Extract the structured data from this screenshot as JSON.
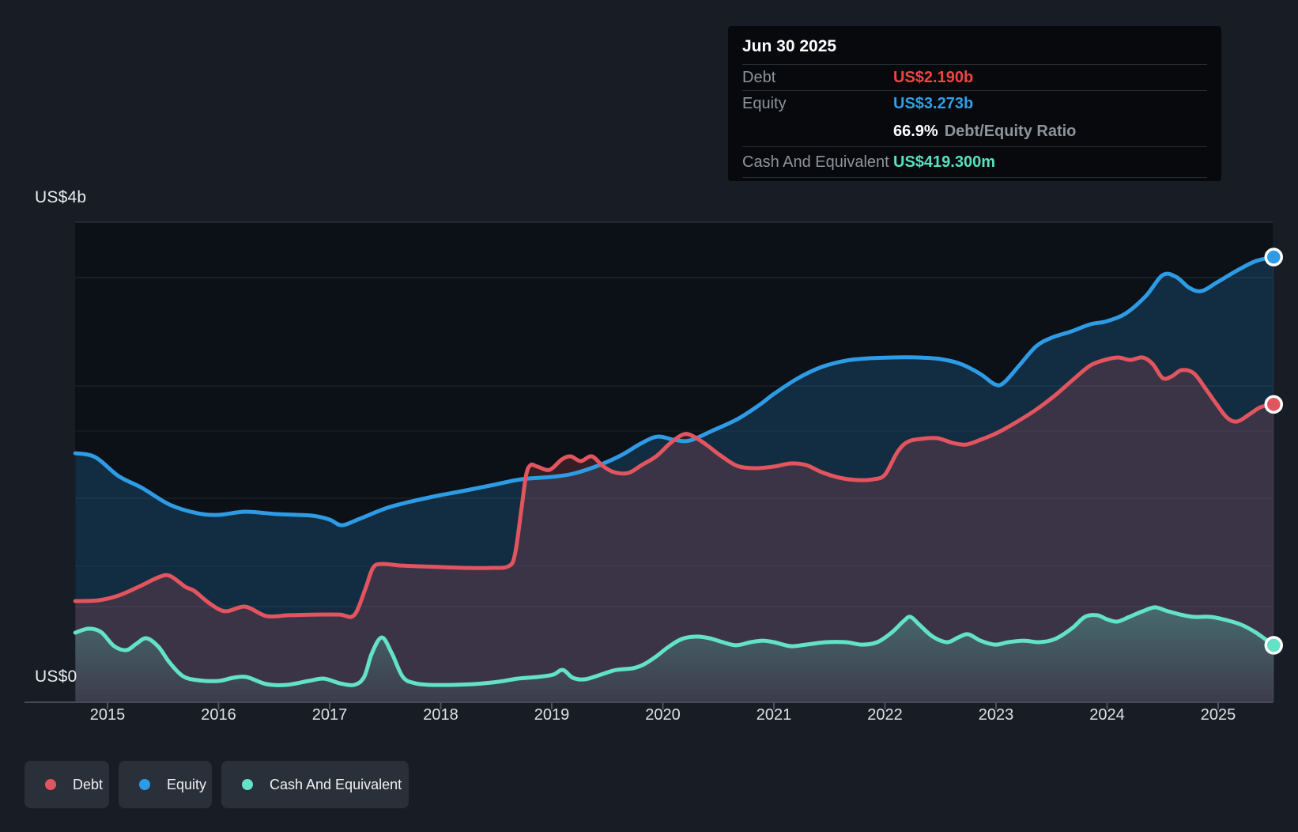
{
  "axis": {
    "y_top_label": "US$4b",
    "y_bottom_label": "US$0",
    "years": [
      "2015",
      "2016",
      "2017",
      "2018",
      "2019",
      "2020",
      "2021",
      "2022",
      "2023",
      "2024",
      "2025"
    ]
  },
  "tooltip": {
    "date": "Jun 30 2025",
    "debt_label": "Debt",
    "debt_value": "US$2.190b",
    "equity_label": "Equity",
    "equity_value": "US$3.273b",
    "ratio_value": "66.9%",
    "ratio_label": "Debt/Equity Ratio",
    "cash_label": "Cash And Equivalent",
    "cash_value": "US$419.300m"
  },
  "legend": {
    "items": [
      {
        "label": "Debt",
        "color": "#e2555f"
      },
      {
        "label": "Equity",
        "color": "#2e9be5"
      },
      {
        "label": "Cash And Equivalent",
        "color": "#63e2c7"
      }
    ]
  },
  "colors": {
    "debt": "#e2555f",
    "equity": "#2e9be5",
    "cash": "#63e2c7",
    "debt_value_text": "#ee4545",
    "equity_value_text": "#2f9fe8",
    "cash_value_text": "#58e0c0"
  },
  "chart_data": {
    "type": "area",
    "title": "Debt to Equity History and Analysis",
    "unit": "US$ billions",
    "x_range": [
      2014.71,
      2025.5
    ],
    "ylim": [
      0,
      4
    ],
    "y_tick_labels": [
      "US$0",
      "US$4b"
    ],
    "grid": true,
    "legend_position": "bottom-left",
    "tooltip_point": {
      "date": "Jun 30 2025",
      "debt_b": 2.19,
      "equity_b": 3.273,
      "debt_equity_ratio_pct": 66.9,
      "cash_m": 419.3
    },
    "series": [
      {
        "name": "Equity",
        "color": "#2e9be5",
        "points": [
          [
            2014.71,
            1.831
          ],
          [
            2014.89,
            1.802
          ],
          [
            2015.1,
            1.663
          ],
          [
            2015.31,
            1.576
          ],
          [
            2015.56,
            1.453
          ],
          [
            2015.81,
            1.39
          ],
          [
            2016.0,
            1.378
          ],
          [
            2016.24,
            1.401
          ],
          [
            2016.52,
            1.384
          ],
          [
            2016.84,
            1.372
          ],
          [
            2017.0,
            1.343
          ],
          [
            2017.11,
            1.302
          ],
          [
            2017.27,
            1.349
          ],
          [
            2017.52,
            1.43
          ],
          [
            2017.77,
            1.483
          ],
          [
            2018.0,
            1.523
          ],
          [
            2018.23,
            1.558
          ],
          [
            2018.48,
            1.599
          ],
          [
            2018.73,
            1.64
          ],
          [
            2019.0,
            1.657
          ],
          [
            2019.19,
            1.68
          ],
          [
            2019.41,
            1.738
          ],
          [
            2019.62,
            1.814
          ],
          [
            2019.8,
            1.901
          ],
          [
            2019.95,
            1.953
          ],
          [
            2020.1,
            1.93
          ],
          [
            2020.24,
            1.924
          ],
          [
            2020.44,
            1.994
          ],
          [
            2020.67,
            2.081
          ],
          [
            2020.87,
            2.186
          ],
          [
            2021.0,
            2.267
          ],
          [
            2021.22,
            2.384
          ],
          [
            2021.43,
            2.465
          ],
          [
            2021.65,
            2.512
          ],
          [
            2021.86,
            2.529
          ],
          [
            2022.07,
            2.535
          ],
          [
            2022.29,
            2.535
          ],
          [
            2022.5,
            2.523
          ],
          [
            2022.68,
            2.488
          ],
          [
            2022.86,
            2.413
          ],
          [
            2022.99,
            2.337
          ],
          [
            2023.07,
            2.349
          ],
          [
            2023.21,
            2.477
          ],
          [
            2023.36,
            2.616
          ],
          [
            2023.5,
            2.68
          ],
          [
            2023.68,
            2.727
          ],
          [
            2023.85,
            2.779
          ],
          [
            2024.0,
            2.802
          ],
          [
            2024.17,
            2.86
          ],
          [
            2024.35,
            2.988
          ],
          [
            2024.5,
            3.14
          ],
          [
            2024.62,
            3.128
          ],
          [
            2024.74,
            3.047
          ],
          [
            2024.85,
            3.023
          ],
          [
            2024.99,
            3.087
          ],
          [
            2025.17,
            3.174
          ],
          [
            2025.34,
            3.244
          ],
          [
            2025.5,
            3.273
          ]
        ]
      },
      {
        "name": "Debt",
        "color": "#e2555f",
        "points": [
          [
            2014.71,
            0.744
          ],
          [
            2014.92,
            0.75
          ],
          [
            2015.1,
            0.785
          ],
          [
            2015.28,
            0.849
          ],
          [
            2015.46,
            0.919
          ],
          [
            2015.56,
            0.93
          ],
          [
            2015.7,
            0.849
          ],
          [
            2015.78,
            0.82
          ],
          [
            2015.92,
            0.727
          ],
          [
            2016.06,
            0.669
          ],
          [
            2016.24,
            0.703
          ],
          [
            2016.43,
            0.634
          ],
          [
            2016.63,
            0.64
          ],
          [
            2016.88,
            0.645
          ],
          [
            2017.09,
            0.645
          ],
          [
            2017.22,
            0.64
          ],
          [
            2017.32,
            0.831
          ],
          [
            2017.39,
            0.988
          ],
          [
            2017.47,
            1.017
          ],
          [
            2017.63,
            1.006
          ],
          [
            2017.8,
            1.0
          ],
          [
            2018.0,
            0.994
          ],
          [
            2018.23,
            0.988
          ],
          [
            2018.44,
            0.988
          ],
          [
            2018.61,
            1.0
          ],
          [
            2018.67,
            1.093
          ],
          [
            2018.73,
            1.442
          ],
          [
            2018.77,
            1.674
          ],
          [
            2018.81,
            1.744
          ],
          [
            2018.87,
            1.733
          ],
          [
            2018.98,
            1.709
          ],
          [
            2019.09,
            1.785
          ],
          [
            2019.17,
            1.808
          ],
          [
            2019.26,
            1.773
          ],
          [
            2019.36,
            1.808
          ],
          [
            2019.46,
            1.738
          ],
          [
            2019.56,
            1.692
          ],
          [
            2019.69,
            1.686
          ],
          [
            2019.81,
            1.744
          ],
          [
            2019.94,
            1.808
          ],
          [
            2020.07,
            1.907
          ],
          [
            2020.19,
            1.971
          ],
          [
            2020.28,
            1.953
          ],
          [
            2020.39,
            1.895
          ],
          [
            2020.52,
            1.814
          ],
          [
            2020.67,
            1.738
          ],
          [
            2020.83,
            1.721
          ],
          [
            2021.0,
            1.733
          ],
          [
            2021.15,
            1.756
          ],
          [
            2021.29,
            1.744
          ],
          [
            2021.43,
            1.692
          ],
          [
            2021.59,
            1.651
          ],
          [
            2021.75,
            1.634
          ],
          [
            2021.9,
            1.64
          ],
          [
            2022.0,
            1.674
          ],
          [
            2022.11,
            1.837
          ],
          [
            2022.2,
            1.913
          ],
          [
            2022.32,
            1.936
          ],
          [
            2022.47,
            1.942
          ],
          [
            2022.61,
            1.907
          ],
          [
            2022.73,
            1.895
          ],
          [
            2022.86,
            1.93
          ],
          [
            2023.0,
            1.977
          ],
          [
            2023.18,
            2.058
          ],
          [
            2023.36,
            2.151
          ],
          [
            2023.53,
            2.256
          ],
          [
            2023.71,
            2.384
          ],
          [
            2023.85,
            2.477
          ],
          [
            2023.98,
            2.517
          ],
          [
            2024.1,
            2.535
          ],
          [
            2024.21,
            2.517
          ],
          [
            2024.32,
            2.535
          ],
          [
            2024.41,
            2.488
          ],
          [
            2024.5,
            2.384
          ],
          [
            2024.58,
            2.395
          ],
          [
            2024.67,
            2.442
          ],
          [
            2024.78,
            2.419
          ],
          [
            2024.89,
            2.302
          ],
          [
            2024.98,
            2.198
          ],
          [
            2025.08,
            2.093
          ],
          [
            2025.17,
            2.064
          ],
          [
            2025.28,
            2.116
          ],
          [
            2025.38,
            2.169
          ],
          [
            2025.5,
            2.19
          ]
        ]
      },
      {
        "name": "Cash And Equivalent",
        "color": "#63e2c7",
        "points": [
          [
            2014.71,
            0.512
          ],
          [
            2014.83,
            0.541
          ],
          [
            2014.94,
            0.517
          ],
          [
            2015.06,
            0.413
          ],
          [
            2015.17,
            0.384
          ],
          [
            2015.26,
            0.43
          ],
          [
            2015.35,
            0.471
          ],
          [
            2015.46,
            0.407
          ],
          [
            2015.56,
            0.291
          ],
          [
            2015.68,
            0.192
          ],
          [
            2015.81,
            0.163
          ],
          [
            2016.0,
            0.157
          ],
          [
            2016.13,
            0.18
          ],
          [
            2016.25,
            0.186
          ],
          [
            2016.43,
            0.134
          ],
          [
            2016.61,
            0.128
          ],
          [
            2016.81,
            0.157
          ],
          [
            2016.95,
            0.174
          ],
          [
            2017.09,
            0.14
          ],
          [
            2017.22,
            0.128
          ],
          [
            2017.31,
            0.186
          ],
          [
            2017.38,
            0.36
          ],
          [
            2017.47,
            0.477
          ],
          [
            2017.56,
            0.36
          ],
          [
            2017.66,
            0.186
          ],
          [
            2017.77,
            0.14
          ],
          [
            2017.91,
            0.128
          ],
          [
            2018.09,
            0.128
          ],
          [
            2018.3,
            0.134
          ],
          [
            2018.52,
            0.151
          ],
          [
            2018.69,
            0.174
          ],
          [
            2018.87,
            0.186
          ],
          [
            2019.01,
            0.203
          ],
          [
            2019.1,
            0.238
          ],
          [
            2019.19,
            0.18
          ],
          [
            2019.3,
            0.169
          ],
          [
            2019.44,
            0.203
          ],
          [
            2019.58,
            0.238
          ],
          [
            2019.73,
            0.25
          ],
          [
            2019.83,
            0.279
          ],
          [
            2019.94,
            0.337
          ],
          [
            2020.05,
            0.407
          ],
          [
            2020.17,
            0.465
          ],
          [
            2020.3,
            0.483
          ],
          [
            2020.42,
            0.471
          ],
          [
            2020.54,
            0.442
          ],
          [
            2020.66,
            0.419
          ],
          [
            2020.79,
            0.442
          ],
          [
            2020.9,
            0.453
          ],
          [
            2021.0,
            0.442
          ],
          [
            2021.15,
            0.413
          ],
          [
            2021.29,
            0.424
          ],
          [
            2021.47,
            0.442
          ],
          [
            2021.65,
            0.442
          ],
          [
            2021.79,
            0.424
          ],
          [
            2021.93,
            0.442
          ],
          [
            2022.06,
            0.512
          ],
          [
            2022.17,
            0.599
          ],
          [
            2022.23,
            0.628
          ],
          [
            2022.31,
            0.57
          ],
          [
            2022.43,
            0.483
          ],
          [
            2022.56,
            0.442
          ],
          [
            2022.66,
            0.477
          ],
          [
            2022.75,
            0.5
          ],
          [
            2022.86,
            0.453
          ],
          [
            2022.99,
            0.424
          ],
          [
            2023.11,
            0.442
          ],
          [
            2023.25,
            0.453
          ],
          [
            2023.39,
            0.442
          ],
          [
            2023.53,
            0.465
          ],
          [
            2023.68,
            0.541
          ],
          [
            2023.8,
            0.628
          ],
          [
            2023.91,
            0.64
          ],
          [
            2024.0,
            0.61
          ],
          [
            2024.09,
            0.593
          ],
          [
            2024.2,
            0.628
          ],
          [
            2024.32,
            0.669
          ],
          [
            2024.43,
            0.698
          ],
          [
            2024.53,
            0.674
          ],
          [
            2024.66,
            0.645
          ],
          [
            2024.78,
            0.628
          ],
          [
            2024.93,
            0.628
          ],
          [
            2025.07,
            0.605
          ],
          [
            2025.21,
            0.57
          ],
          [
            2025.34,
            0.512
          ],
          [
            2025.5,
            0.419
          ]
        ]
      }
    ]
  }
}
